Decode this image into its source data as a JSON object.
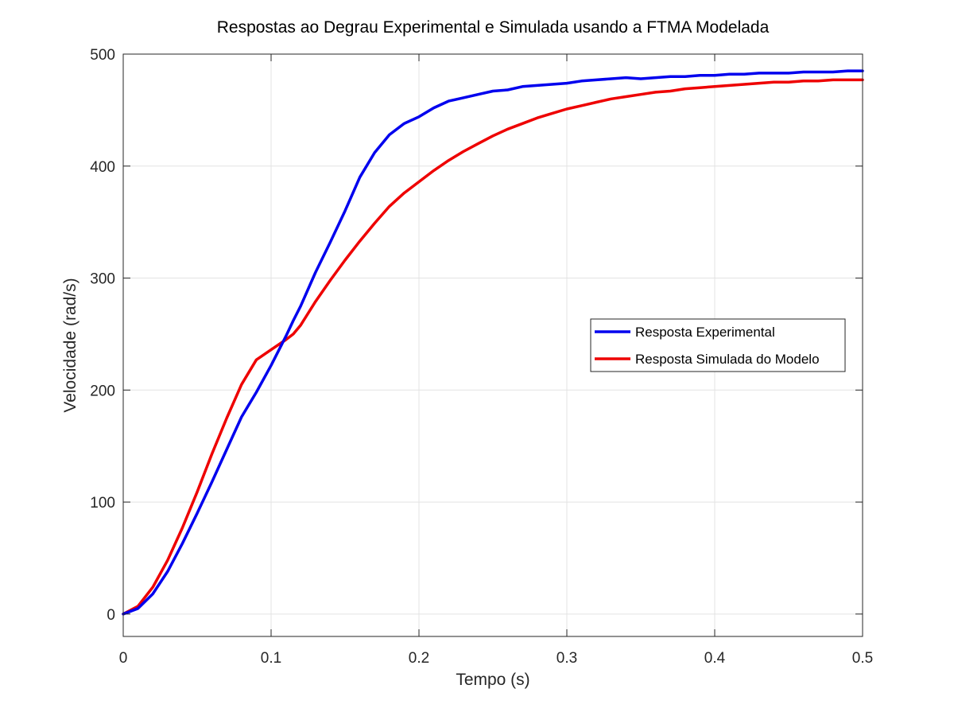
{
  "chart_data": {
    "type": "line",
    "title": "Respostas ao Degrau Experimental e Simulada usando a FTMA Modelada",
    "xlabel": "Tempo (s)",
    "ylabel": "Velocidade (rad/s)",
    "xlim": [
      0,
      0.5
    ],
    "ylim": [
      -20,
      500
    ],
    "xticks": [
      0,
      0.1,
      0.2,
      0.3,
      0.4,
      0.5
    ],
    "xtick_labels": [
      "0",
      "0.1",
      "0.2",
      "0.3",
      "0.4",
      "0.5"
    ],
    "yticks": [
      0,
      100,
      200,
      300,
      400,
      500
    ],
    "ytick_labels": [
      "0",
      "100",
      "200",
      "300",
      "400",
      "500"
    ],
    "grid": true,
    "legend_position": "right-middle",
    "series": [
      {
        "name": "Resposta Experimental",
        "color": "#0000ee",
        "x": [
          0,
          0.01,
          0.02,
          0.03,
          0.04,
          0.05,
          0.06,
          0.07,
          0.08,
          0.09,
          0.1,
          0.11,
          0.115,
          0.12,
          0.13,
          0.14,
          0.15,
          0.16,
          0.17,
          0.18,
          0.19,
          0.2,
          0.21,
          0.22,
          0.23,
          0.24,
          0.25,
          0.26,
          0.27,
          0.28,
          0.29,
          0.3,
          0.31,
          0.32,
          0.33,
          0.34,
          0.35,
          0.36,
          0.37,
          0.38,
          0.39,
          0.4,
          0.41,
          0.42,
          0.43,
          0.44,
          0.45,
          0.46,
          0.47,
          0.48,
          0.49,
          0.5
        ],
        "y": [
          0,
          5,
          18,
          38,
          63,
          90,
          118,
          147,
          176,
          198,
          222,
          248,
          262,
          275,
          305,
          332,
          360,
          390,
          412,
          428,
          438,
          444,
          452,
          458,
          461,
          464,
          467,
          468,
          471,
          472,
          473,
          474,
          476,
          477,
          478,
          479,
          478,
          479,
          480,
          480,
          481,
          481,
          482,
          482,
          483,
          483,
          483,
          484,
          484,
          484,
          485,
          485
        ]
      },
      {
        "name": "Resposta Simulada do Modelo",
        "color": "#ee0000",
        "x": [
          0,
          0.01,
          0.02,
          0.03,
          0.04,
          0.05,
          0.06,
          0.07,
          0.08,
          0.09,
          0.1,
          0.11,
          0.115,
          0.12,
          0.13,
          0.14,
          0.15,
          0.16,
          0.17,
          0.18,
          0.19,
          0.2,
          0.21,
          0.22,
          0.23,
          0.24,
          0.25,
          0.26,
          0.27,
          0.28,
          0.29,
          0.3,
          0.31,
          0.32,
          0.33,
          0.34,
          0.35,
          0.36,
          0.37,
          0.38,
          0.39,
          0.4,
          0.41,
          0.42,
          0.43,
          0.44,
          0.45,
          0.46,
          0.47,
          0.48,
          0.49,
          0.5
        ],
        "y": [
          0,
          7,
          24,
          48,
          77,
          109,
          143,
          175,
          205,
          227,
          236,
          245,
          250,
          258,
          279,
          298,
          316,
          333,
          349,
          364,
          376,
          386,
          396,
          405,
          413,
          420,
          427,
          433,
          438,
          443,
          447,
          451,
          454,
          457,
          460,
          462,
          464,
          466,
          467,
          469,
          470,
          471,
          472,
          473,
          474,
          475,
          475,
          476,
          476,
          477,
          477,
          477
        ]
      }
    ]
  }
}
